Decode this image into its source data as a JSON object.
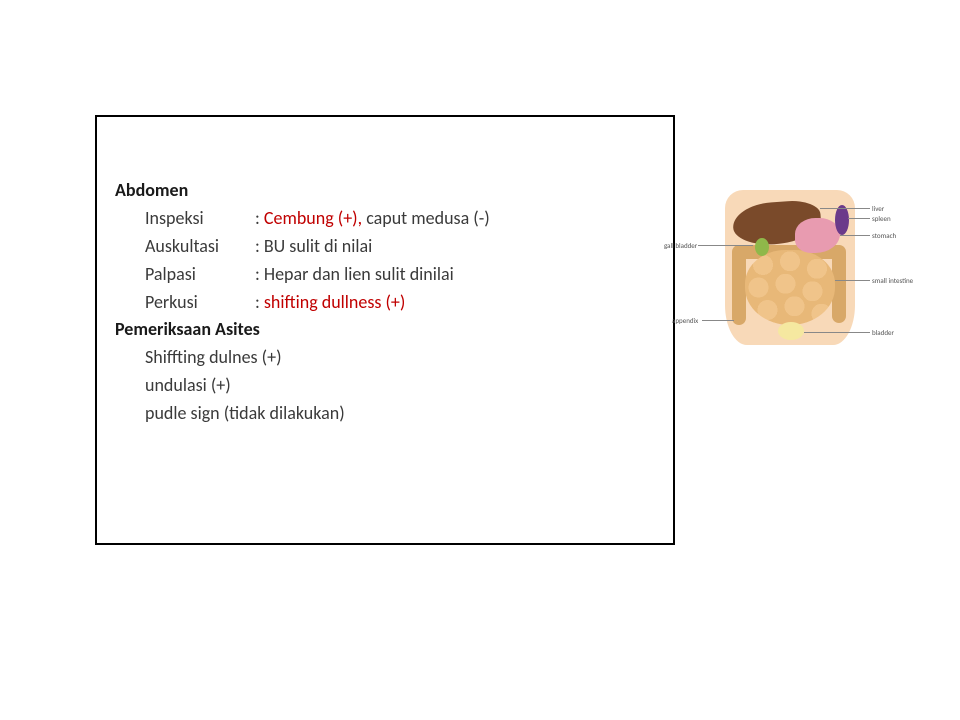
{
  "abdomen": {
    "heading": "Abdomen",
    "rows": [
      {
        "label": "Inspeksi",
        "parts": [
          {
            "text": ": ",
            "red": false
          },
          {
            "text": "Cembung (+), ",
            "red": true
          },
          {
            "text": "caput medusa (-)",
            "red": false
          }
        ]
      },
      {
        "label": "Auskultasi",
        "parts": [
          {
            "text": ": BU sulit di nilai",
            "red": false
          }
        ]
      },
      {
        "label": "Palpasi",
        "parts": [
          {
            "text": ": Hepar dan lien sulit dinilai",
            "red": false
          }
        ]
      },
      {
        "label": "Perkusi",
        "parts": [
          {
            "text": ": ",
            "red": false
          },
          {
            "text": "shifting dullness (+)",
            "red": true
          }
        ]
      }
    ]
  },
  "asites": {
    "heading": "Pemeriksaan Asites",
    "lines": [
      "Shiffting dulnes (+)",
      "undulasi (+)",
      "pudle sign (tidak dilakukan)"
    ]
  },
  "anatomy_labels": {
    "liver": "liver",
    "gall_bladder": "gall bladder",
    "appendix": "appendix",
    "spleen": "spleen",
    "stomach": "stomach",
    "small_intestine": "small intestine",
    "bladder": "bladder"
  },
  "colors": {
    "text": "#3a3a3a",
    "highlight": "#c00000",
    "border": "#000000",
    "skin": "#f8d9b8",
    "liver": "#7a4a2a",
    "stomach": "#e89bb0",
    "spleen": "#6b3a8a",
    "gall": "#8fb84a",
    "intestine": "#e8b878",
    "colon": "#d8a868",
    "bladder": "#f5e8a0"
  }
}
